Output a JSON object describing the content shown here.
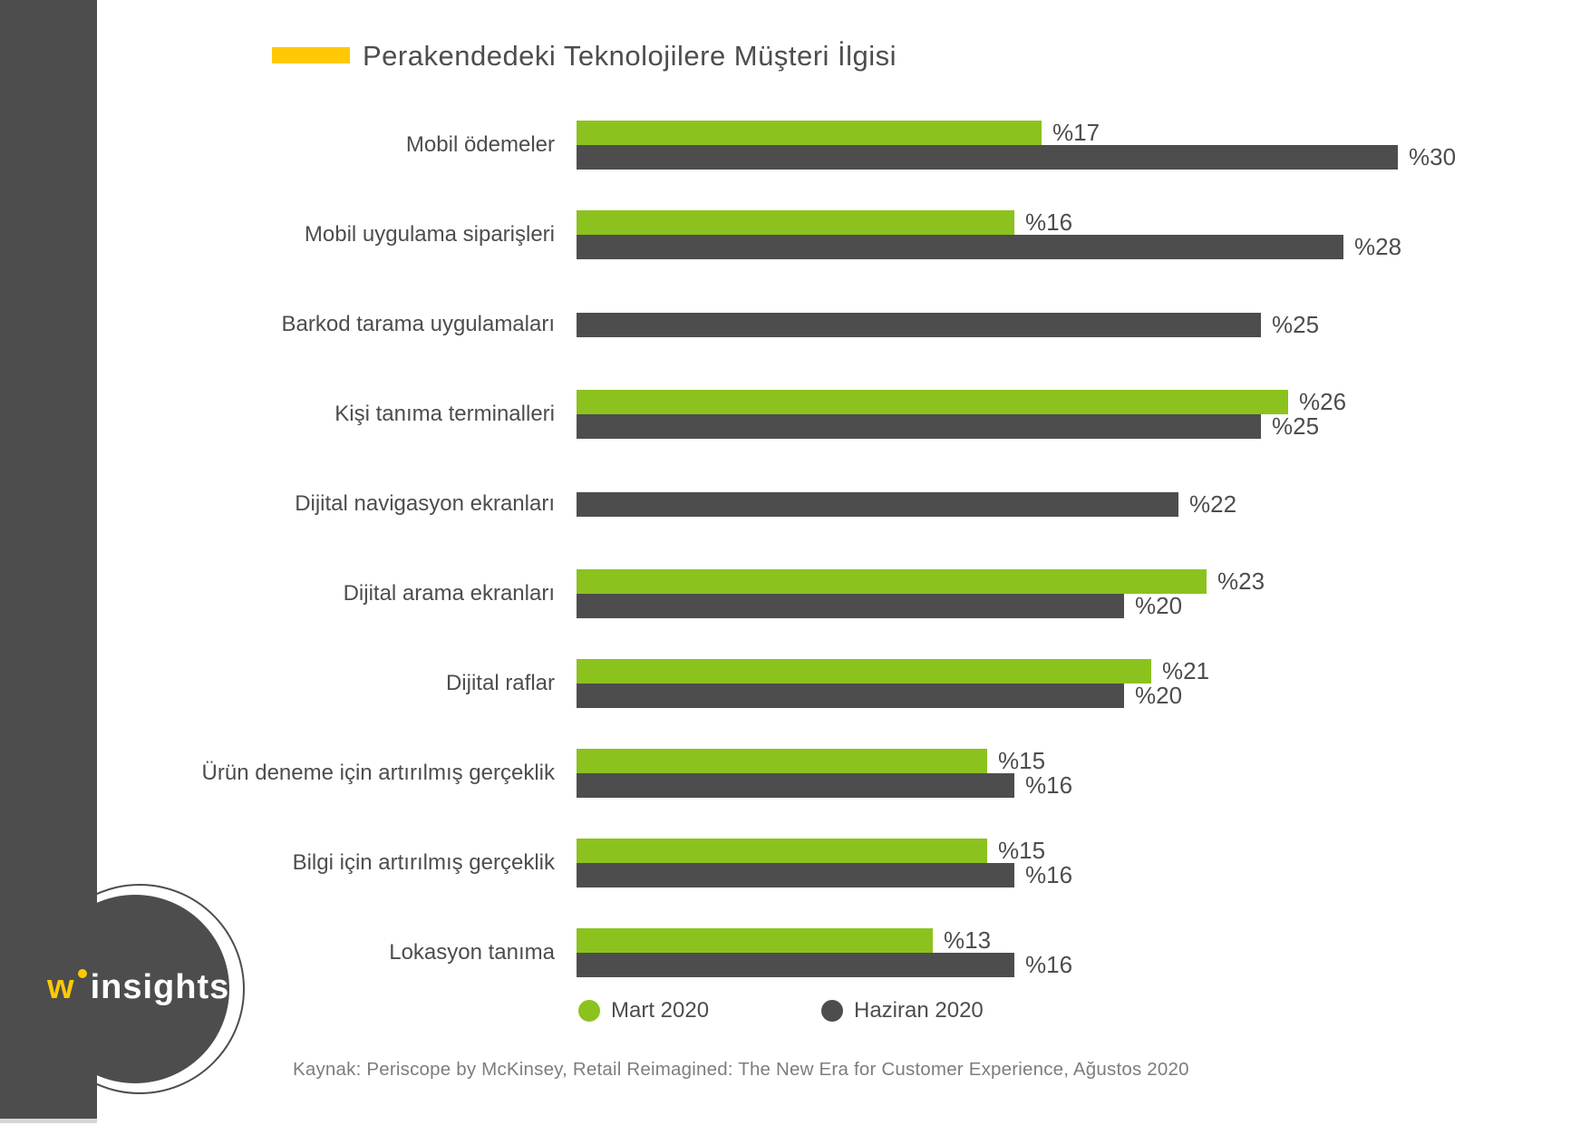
{
  "title": {
    "text": "Perakendedeki Teknolojilere Müşteri İlgisi",
    "accent_color": "#ffc905"
  },
  "logo": {
    "brand_w": "w",
    "brand_rest": "insights"
  },
  "legend": [
    {
      "label": "Mart 2020",
      "color": "#8cc21e"
    },
    {
      "label": "Haziran 2020",
      "color": "#4d4d4d"
    }
  ],
  "footer": {
    "source": "Kaynak: Periscope by McKinsey, Retail Reimagined: The New Era for Customer Experience, Ağustos 2020"
  },
  "colors": {
    "bar_green": "#8cc21e",
    "bar_dark": "#4d4d4d",
    "accent_yellow": "#ffc905",
    "text_dark": "#4d4d4d",
    "text_muted": "#7d7d7d"
  },
  "chart_data": {
    "type": "bar",
    "orientation": "horizontal",
    "title": "Perakendedeki Teknolojilere Müşteri İlgisi",
    "value_prefix": "%",
    "xlim": [
      0,
      32
    ],
    "grid": false,
    "legend_position": "bottom",
    "categories": [
      "Mobil ödemeler",
      "Mobil uygulama siparişleri",
      "Barkod tarama uygulamaları",
      "Kişi tanıma terminalleri",
      "Dijital navigasyon ekranları",
      "Dijital arama ekranları",
      "Dijital raflar",
      "Ürün deneme için artırılmış gerçeklik",
      "Bilgi için artırılmış gerçeklik",
      "Lokasyon tanıma"
    ],
    "series": [
      {
        "name": "Mart 2020",
        "color": "#8cc21e",
        "values": [
          17,
          16,
          null,
          26,
          null,
          23,
          21,
          15,
          15,
          13
        ]
      },
      {
        "name": "Haziran 2020",
        "color": "#4d4d4d",
        "values": [
          30,
          28,
          25,
          25,
          22,
          20,
          20,
          16,
          16,
          16
        ]
      }
    ]
  }
}
